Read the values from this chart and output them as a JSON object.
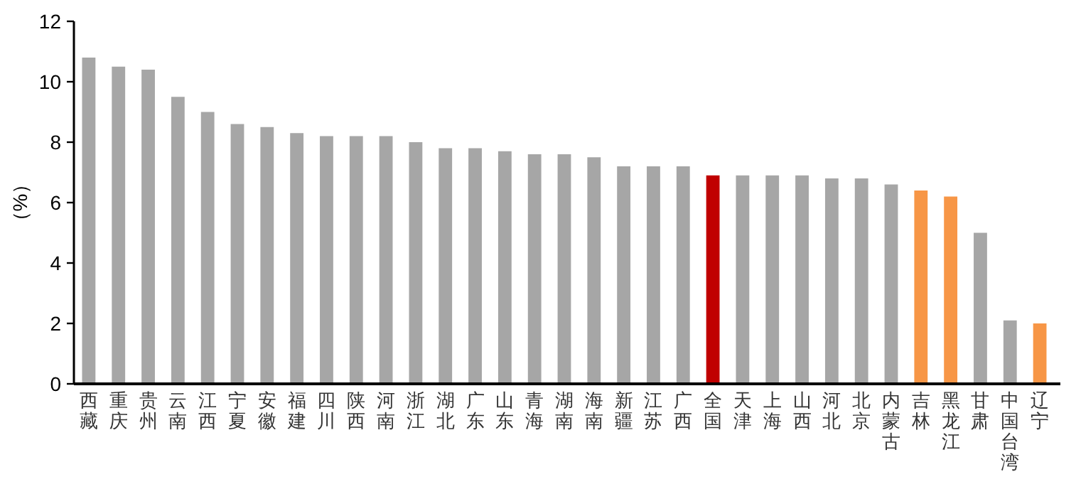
{
  "chart_data": {
    "type": "bar",
    "ylabel": "（%）",
    "categories": [
      "西藏",
      "重庆",
      "贵州",
      "云南",
      "江西",
      "宁夏",
      "安徽",
      "福建",
      "四川",
      "陕西",
      "河南",
      "浙江",
      "湖北",
      "广东",
      "山东",
      "青海",
      "湖南",
      "海南",
      "新疆",
      "江苏",
      "广西",
      "全国",
      "天津",
      "上海",
      "山西",
      "河北",
      "北京",
      "内蒙古",
      "吉林",
      "黑龙江",
      "甘肃",
      "中国台湾",
      "辽宁"
    ],
    "values": [
      10.8,
      10.5,
      10.4,
      9.5,
      9.0,
      8.6,
      8.5,
      8.3,
      8.2,
      8.2,
      8.2,
      8.0,
      7.8,
      7.8,
      7.7,
      7.6,
      7.6,
      7.5,
      7.2,
      7.2,
      7.2,
      6.9,
      6.9,
      6.9,
      6.9,
      6.8,
      6.8,
      6.6,
      6.4,
      6.2,
      5.0,
      2.1,
      2.0
    ],
    "colors": [
      "#a6a6a6",
      "#a6a6a6",
      "#a6a6a6",
      "#a6a6a6",
      "#a6a6a6",
      "#a6a6a6",
      "#a6a6a6",
      "#a6a6a6",
      "#a6a6a6",
      "#a6a6a6",
      "#a6a6a6",
      "#a6a6a6",
      "#a6a6a6",
      "#a6a6a6",
      "#a6a6a6",
      "#a6a6a6",
      "#a6a6a6",
      "#a6a6a6",
      "#a6a6a6",
      "#a6a6a6",
      "#a6a6a6",
      "#c00000",
      "#a6a6a6",
      "#a6a6a6",
      "#a6a6a6",
      "#a6a6a6",
      "#a6a6a6",
      "#a6a6a6",
      "#f79646",
      "#f79646",
      "#a6a6a6",
      "#a6a6a6",
      "#f79646"
    ],
    "ylim": [
      0,
      12
    ],
    "yticks": [
      0,
      2,
      4,
      6,
      8,
      10,
      12
    ]
  }
}
